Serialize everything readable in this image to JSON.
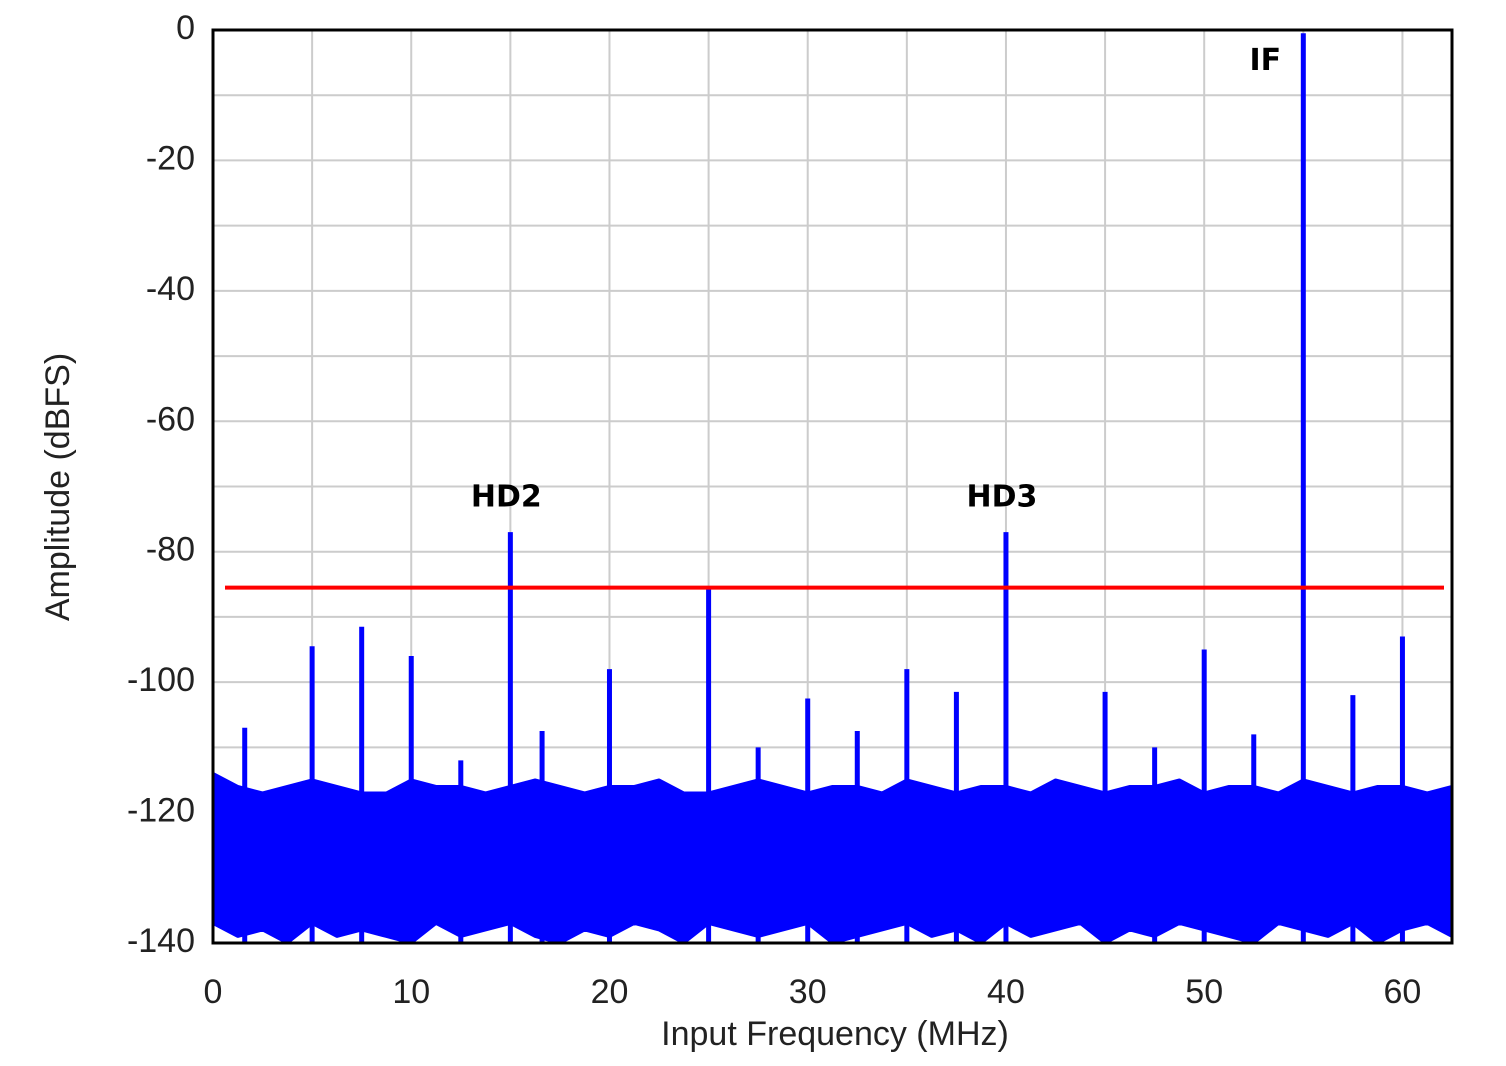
{
  "chart_data": {
    "type": "line",
    "xlabel": "Input Frequency (MHz)",
    "ylabel": "Amplitude (dBFS)",
    "xlim": [
      0,
      62.5
    ],
    "ylim": [
      -140,
      0
    ],
    "xticks": [
      0,
      10,
      20,
      30,
      40,
      50,
      60
    ],
    "yticks": [
      0,
      -20,
      -40,
      -60,
      -80,
      -100,
      -120,
      -140
    ],
    "x_minor_ticks": [
      5,
      15,
      25,
      35,
      45,
      55
    ],
    "y_minor_ticks": [
      -10,
      -30,
      -50,
      -70,
      -90,
      -110,
      -130
    ],
    "grid": true,
    "noise": {
      "color": "#0000ff",
      "x": [
        0,
        1.25,
        2.5,
        3.75,
        5,
        6.25,
        7.5,
        8.75,
        10,
        11.25,
        12.5,
        13.75,
        15,
        16.25,
        17.5,
        18.75,
        20,
        21.25,
        22.5,
        23.75,
        25,
        26.25,
        27.5,
        28.75,
        30,
        31.25,
        32.5,
        33.75,
        35,
        36.25,
        37.5,
        38.75,
        40,
        41.25,
        42.5,
        43.75,
        45,
        46.25,
        47.5,
        48.75,
        50,
        51.25,
        52.5,
        53.75,
        55,
        56.25,
        57.5,
        58.75,
        60,
        61.25,
        62.5
      ],
      "upper": [
        -114,
        -116,
        -117,
        -116,
        -115,
        -116,
        -117,
        -117,
        -115,
        -116,
        -116,
        -117,
        -116,
        -115,
        -116,
        -117,
        -116,
        -116,
        -115,
        -117,
        -117,
        -116,
        -115,
        -116,
        -117,
        -116,
        -116,
        -117,
        -115,
        -116,
        -117,
        -116,
        -116,
        -117,
        -115,
        -116,
        -117,
        -116,
        -116,
        -115,
        -117,
        -116,
        -116,
        -117,
        -115,
        -116,
        -117,
        -116,
        -116,
        -117,
        -116
      ],
      "lower": [
        -137,
        -139,
        -138,
        -140,
        -137,
        -139,
        -138,
        -139,
        -140,
        -137,
        -139,
        -138,
        -137,
        -139,
        -140,
        -138,
        -139,
        -137,
        -138,
        -140,
        -137,
        -138,
        -139,
        -138,
        -137,
        -140,
        -139,
        -138,
        -137,
        -139,
        -138,
        -140,
        -137,
        -139,
        -138,
        -137,
        -140,
        -138,
        -139,
        -137,
        -138,
        -139,
        -140,
        -137,
        -138,
        -139,
        -137,
        -140,
        -138,
        -137,
        -139
      ]
    },
    "spurs": {
      "color": "#0000ff",
      "x": [
        1.6,
        5,
        7.5,
        10,
        12.5,
        15,
        16.6,
        20,
        25,
        27.5,
        30,
        32.5,
        35,
        37.5,
        40,
        45,
        47.5,
        50,
        52.5,
        55,
        57.5,
        60
      ],
      "values": [
        -107,
        -94.5,
        -91.5,
        -96,
        -112,
        -77,
        -107.5,
        -98,
        -85.5,
        -110,
        -102.5,
        -107.5,
        -98,
        -101.5,
        -77,
        -101.5,
        -110,
        -95,
        -108,
        -0.5,
        -102,
        -93
      ]
    },
    "reference_line": {
      "value": -85.5,
      "color": "#ff0000"
    },
    "annotations": [
      {
        "text": "HD2",
        "x": 15,
        "y": -77
      },
      {
        "text": "HD3",
        "x": 40,
        "y": -77
      },
      {
        "text": "IF",
        "x": 55,
        "y": -0.5
      }
    ]
  }
}
